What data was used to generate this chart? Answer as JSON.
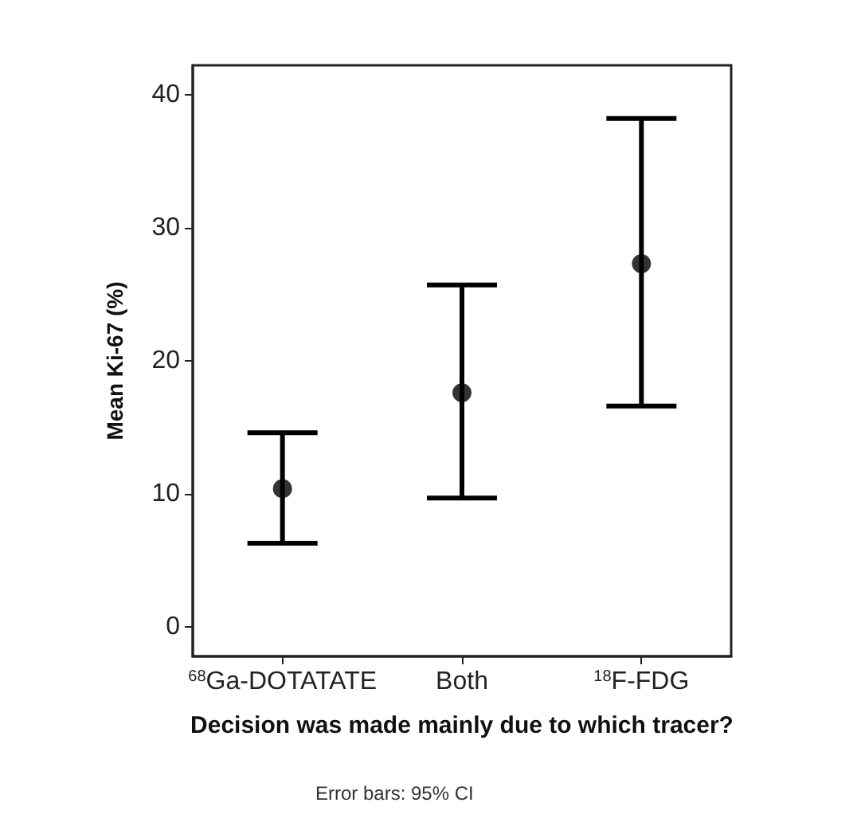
{
  "chart_data": {
    "type": "scatter",
    "xlabel": "Decision was made mainly due to which tracer?",
    "ylabel": "Mean Ki-67 (%)",
    "categories": [
      "$^{68}$Ga-DOTATATE",
      "Both",
      "$^{18}$F-FDG"
    ],
    "values": [
      10.4,
      17.6,
      27.3
    ],
    "errors": [
      [
        6.3,
        14.6
      ],
      [
        9.7,
        25.7
      ],
      [
        16.6,
        38.2
      ]
    ],
    "color": "#000000",
    "marker": "circle",
    "grid": false,
    "ylim": [
      -2.2,
      42.2
    ],
    "yticks": [
      0,
      10,
      20,
      30,
      40
    ],
    "annotations": [
      "Error bars: 95% CI"
    ]
  }
}
